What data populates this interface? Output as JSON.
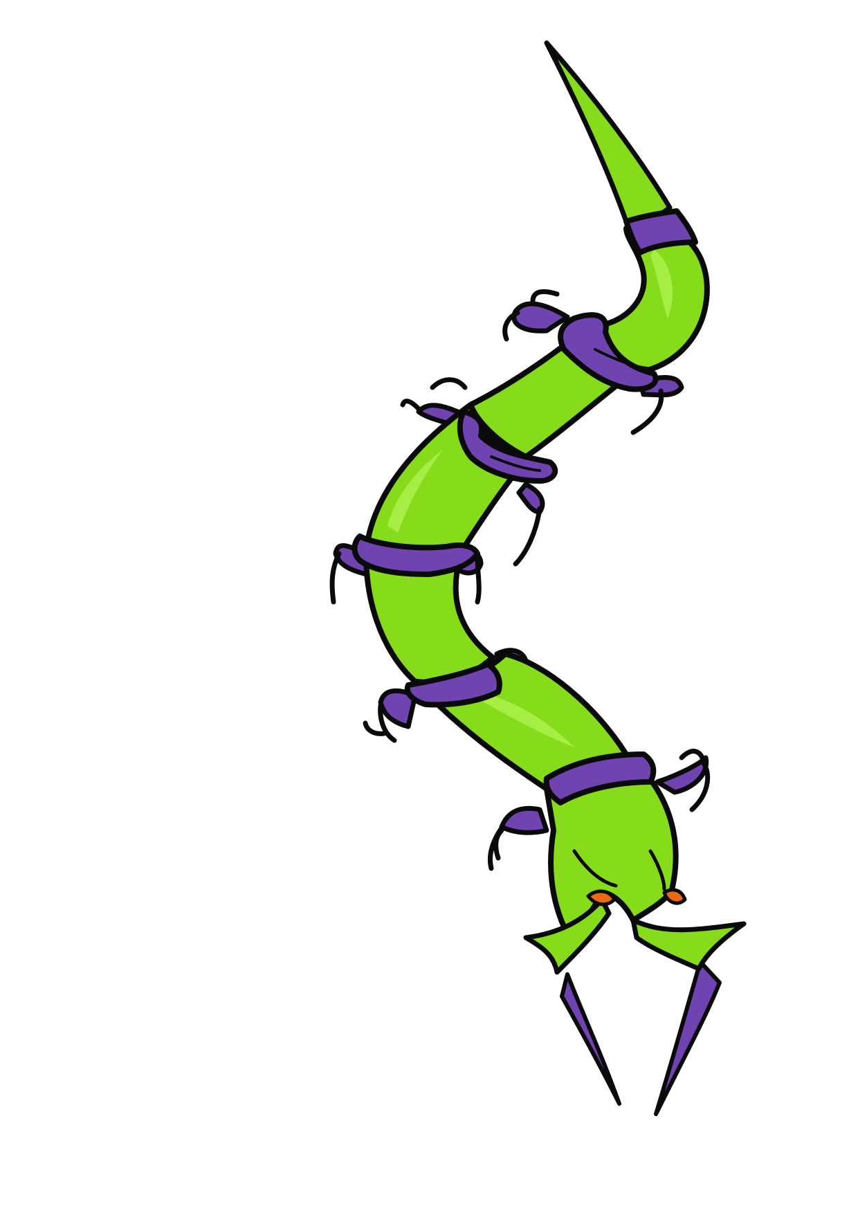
{
  "illustration": {
    "subject": "segmented-centipede-creature",
    "colors": {
      "background": "#ffffff",
      "body": "#86dc1a",
      "body_highlight": "#a6ee44",
      "bands": "#6f44b0",
      "outline": "#0a0a0a",
      "eyes": "#ea6a10"
    }
  }
}
